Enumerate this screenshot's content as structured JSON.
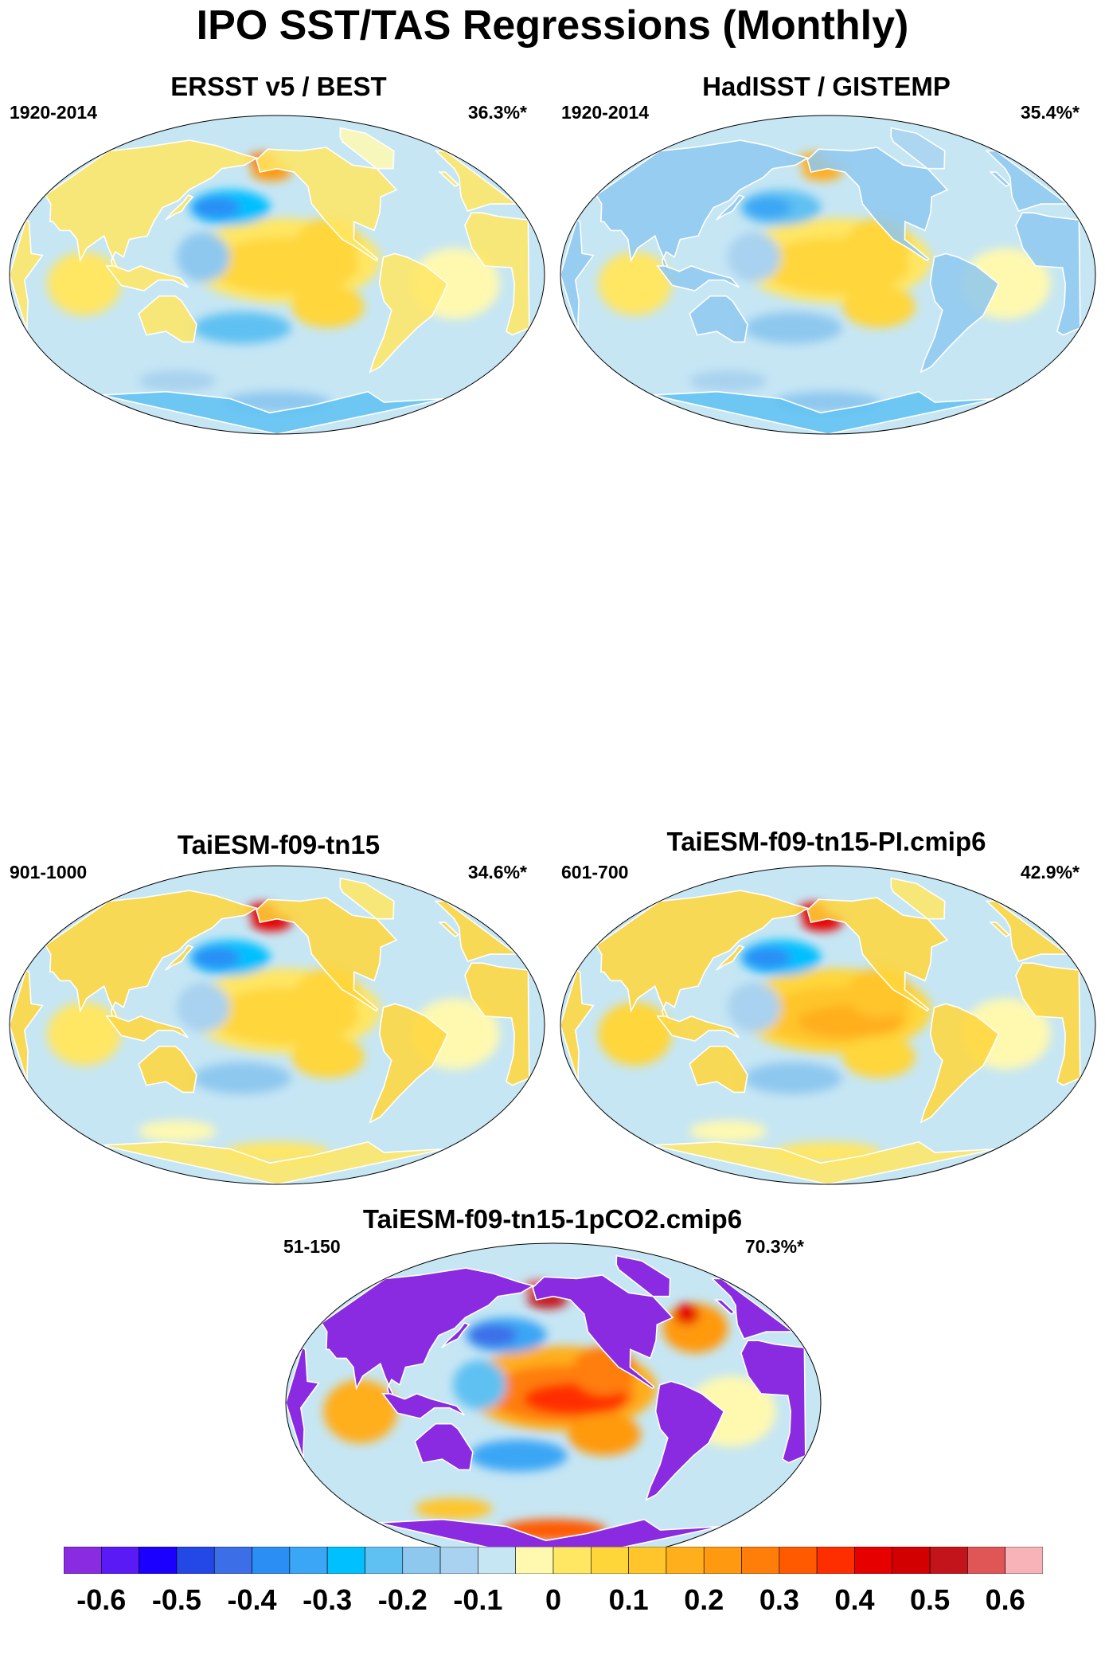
{
  "title": "IPO SST/TAS Regressions (Monthly)",
  "chart_data": [
    {
      "type": "heatmap",
      "panel_id": "ersst",
      "title": "ERSST v5 / BEST",
      "period": "1920-2014",
      "variance": "36.3%*",
      "pattern": {
        "tropical_pacific": 0.15,
        "north_pacific": -0.25,
        "alaska": 0.3,
        "south_pacific_horseshoe": -0.2,
        "land": 0.05,
        "antarctic": -0.2
      }
    },
    {
      "type": "heatmap",
      "panel_id": "hadisst",
      "title": "HadISST / GISTEMP",
      "period": "1920-2014",
      "variance": "35.4%*",
      "pattern": {
        "tropical_pacific": 0.15,
        "north_pacific": -0.2,
        "alaska": 0.2,
        "south_pacific_horseshoe": -0.15,
        "land": -0.15,
        "antarctic": -0.25
      }
    },
    {
      "type": "heatmap",
      "panel_id": "taiesm",
      "title": "TaiESM-f09-tn15",
      "period": "901-1000",
      "variance": "34.6%*",
      "pattern": {
        "tropical_pacific": 0.15,
        "north_pacific": -0.25,
        "alaska": 0.45,
        "south_pacific_horseshoe": -0.15,
        "land": 0.1,
        "antarctic": 0.1
      }
    },
    {
      "type": "heatmap",
      "panel_id": "taiesm_pi",
      "title": "TaiESM-f09-tn15-PI.cmip6",
      "period": "601-700",
      "variance": "42.9%*",
      "pattern": {
        "tropical_pacific": 0.2,
        "north_pacific": -0.25,
        "alaska": 0.45,
        "south_pacific_horseshoe": -0.15,
        "land": 0.15,
        "antarctic": 0.1
      }
    },
    {
      "type": "heatmap",
      "panel_id": "taiesm_1pco2",
      "title": "TaiESM-f09-tn15-1pCO2.cmip6",
      "period": "51-150",
      "variance": "70.3%*",
      "pattern": {
        "tropical_pacific": 0.4,
        "north_pacific": -0.3,
        "alaska": 0.55,
        "south_pacific_horseshoe": -0.3,
        "land": -0.7,
        "antarctic": 0.6,
        "north_atlantic": 0.3
      }
    }
  ],
  "colorbar": {
    "colors": [
      "#8a2be2",
      "#5a1af5",
      "#1c00ff",
      "#2448e6",
      "#3c6ee8",
      "#2b8ef5",
      "#3aa6f5",
      "#00c0ff",
      "#5ec1f2",
      "#8ec8ef",
      "#a8d2ef",
      "#c6e6f4",
      "#fff9b0",
      "#ffe663",
      "#ffd63a",
      "#ffc52a",
      "#ffae1c",
      "#ff9a10",
      "#ff7e0a",
      "#ff5a00",
      "#ff2e00",
      "#e60000",
      "#d20000",
      "#c2141a",
      "#e05555",
      "#f7b3b8"
    ],
    "labels": [
      "-0.6",
      "-0.5",
      "-0.4",
      "-0.3",
      "-0.2",
      "-0.1",
      "0",
      "0.1",
      "0.2",
      "0.3",
      "0.4",
      "0.5",
      "0.6"
    ]
  }
}
